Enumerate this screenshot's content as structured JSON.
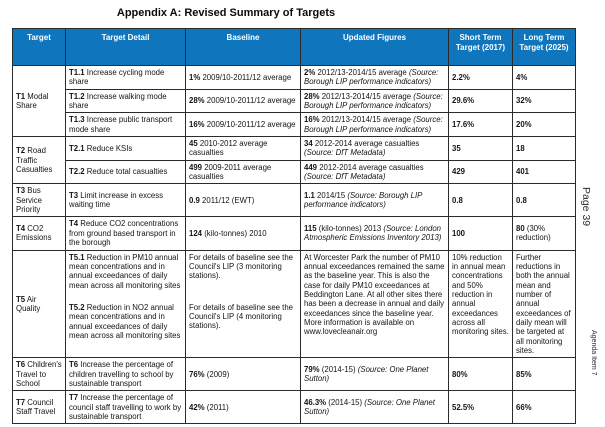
{
  "page": {
    "title": "Appendix A: Revised Summary of Targets",
    "margin": {
      "page_label": "Page 39",
      "agenda_label": "Agenda Item 7"
    }
  },
  "colors": {
    "header_bg": "#0F76BE",
    "header_text": "#FFFFFF",
    "border": "#2B2B2B"
  },
  "table": {
    "headers": [
      "Target",
      "Target Detail",
      "Baseline",
      "Updated Figures",
      "Short Term Target (2017)",
      "Long Term Target (2025)"
    ],
    "groups": [
      {
        "target": [
          {
            "b": "T1"
          },
          {
            "t": "Modal Share"
          }
        ],
        "rows": [
          {
            "detail": [
              {
                "b": "T1.1"
              },
              {
                "t": "Increase cycling mode share"
              }
            ],
            "baseline": [
              {
                "b": "1%"
              },
              {
                "t": "2009/10-2011/12 average"
              }
            ],
            "updated": [
              {
                "b": "2%"
              },
              {
                "t": "2012/13-2014/15 average"
              },
              {
                "i": "(Source: Borough LIP performance indicators)"
              }
            ],
            "short": [
              {
                "b": "2.2%"
              }
            ],
            "long": [
              {
                "b": "4%"
              }
            ]
          },
          {
            "detail": [
              {
                "b": "T1.2"
              },
              {
                "t": "Increase walking mode share"
              }
            ],
            "baseline": [
              {
                "b": "28%"
              },
              {
                "t": "2009/10-2011/12 average"
              }
            ],
            "updated": [
              {
                "b": "28%"
              },
              {
                "t": "2012/13-2014/15 average"
              },
              {
                "i": "(Source: Borough LIP performance indicators)"
              }
            ],
            "short": [
              {
                "b": "29.6%"
              }
            ],
            "long": [
              {
                "b": "32%"
              }
            ]
          },
          {
            "detail": [
              {
                "b": "T1.3"
              },
              {
                "t": "Increase public transport mode share"
              }
            ],
            "baseline": [
              {
                "b": "16%"
              },
              {
                "t": "2009/10-2011/12 average"
              }
            ],
            "updated": [
              {
                "b": "16%"
              },
              {
                "t": "2012/13-2014/15 average"
              },
              {
                "i": "(Source: Borough LIP performance indicators)"
              }
            ],
            "short": [
              {
                "b": "17.6%"
              }
            ],
            "long": [
              {
                "b": "20%"
              }
            ]
          }
        ]
      },
      {
        "target": [
          {
            "b": "T2"
          },
          {
            "t": "Road Traffic Casualties"
          }
        ],
        "rows": [
          {
            "detail": [
              {
                "b": "T2.1"
              },
              {
                "t": "Reduce KSIs"
              }
            ],
            "baseline": [
              {
                "b": "45"
              },
              {
                "t": "2010-2012 average casualties"
              }
            ],
            "updated": [
              {
                "b": "34"
              },
              {
                "t": "2012-2014 average casualties"
              },
              {
                "i": "(Source: DfT Metadata)"
              }
            ],
            "short": [
              {
                "b": "35"
              }
            ],
            "long": [
              {
                "b": "18"
              }
            ]
          },
          {
            "detail": [
              {
                "b": "T2.2"
              },
              {
                "t": "Reduce total casualties"
              }
            ],
            "baseline": [
              {
                "b": "499"
              },
              {
                "t": "2009-2011 average casualties"
              }
            ],
            "updated": [
              {
                "b": "449"
              },
              {
                "t": "2012-2014 average casualties"
              },
              {
                "i": "(Source: DfT Metadata)"
              }
            ],
            "short": [
              {
                "b": "429"
              }
            ],
            "long": [
              {
                "b": "401"
              }
            ]
          }
        ]
      },
      {
        "target": [
          {
            "b": "T3"
          },
          {
            "t": "Bus Service Priority"
          }
        ],
        "rows": [
          {
            "detail": [
              {
                "b": "T3"
              },
              {
                "t": "Limit increase in excess waiting time"
              }
            ],
            "baseline": [
              {
                "b": "0.9"
              },
              {
                "t": "2011/12 (EWT)"
              }
            ],
            "updated": [
              {
                "b": "1.1"
              },
              {
                "t": "2014/15"
              },
              {
                "i": "(Source: Borough LIP performance indicators)"
              }
            ],
            "short": [
              {
                "b": "0.8"
              }
            ],
            "long": [
              {
                "b": "0.8"
              }
            ]
          }
        ]
      },
      {
        "target": [
          {
            "b": "T4"
          },
          {
            "t": "CO2 Emissions"
          }
        ],
        "rows": [
          {
            "detail": [
              {
                "b": "T4"
              },
              {
                "t": "Reduce CO2 concentrations from ground based transport in the borough"
              }
            ],
            "baseline": [
              {
                "b": "124"
              },
              {
                "t": "(kilo-tonnes) 2010"
              }
            ],
            "updated": [
              {
                "b": "115"
              },
              {
                "t": "(kilo-tonnes) 2013"
              },
              {
                "i": "(Source: London Atmospheric Emissions Inventory 2013)"
              }
            ],
            "short": [
              {
                "b": "100"
              }
            ],
            "long": [
              {
                "b": "80"
              },
              {
                "t": "(30% reduction)"
              }
            ]
          }
        ]
      },
      {
        "target": [
          {
            "b": "T5"
          },
          {
            "t": "Air Quality"
          }
        ],
        "tall": true,
        "rows": [
          {
            "detail": {
              "paras": [
                [
                  {
                    "b": "T5.1"
                  },
                  {
                    "t": "Reduction in PM10 annual mean concentrations and in annual exceedances of daily mean across all monitoring sites"
                  }
                ],
                [
                  {
                    "b": "T5.2"
                  },
                  {
                    "t": "Reduction in NO2 annual mean concentrations and in annual exceedances of daily mean across all monitoring sites"
                  }
                ]
              ]
            },
            "baseline": {
              "paras": [
                [
                  {
                    "t": "For details of baseline see the Council's LIP (3 monitoring stations)."
                  }
                ],
                [
                  {
                    "t": "For details of baseline see the Council's LIP (4 monitoring stations)."
                  }
                ]
              ]
            },
            "updated": [
              {
                "t": "At Worcester Park the number of PM10 annual exceedances remained the same as the baseline year. This is also the case for daily PM10 exceedances at Beddington Lane. At all other sites there has been a decrease in annual and daily exceedances since the baseline year. More information is available on www.lovecleanair.org"
              }
            ],
            "short": [
              {
                "t": "10% reduction in annual mean concentrations and 50% reduction in annual exceedances across all monitoring sites."
              }
            ],
            "long": [
              {
                "t": "Further reductions in both the annual mean and number of annual exceedances of daily mean will be targeted at all monitoring sites."
              }
            ]
          }
        ]
      },
      {
        "target": [
          {
            "b": "T6"
          },
          {
            "t": "Children's Travel to School"
          }
        ],
        "rows": [
          {
            "detail": [
              {
                "b": "T6"
              },
              {
                "t": "Increase the percentage of children travelling to school by sustainable transport"
              }
            ],
            "baseline": [
              {
                "b": "76%"
              },
              {
                "t": "(2009)"
              }
            ],
            "updated": [
              {
                "b": "79%"
              },
              {
                "t": "(2014-15)"
              },
              {
                "i": "(Source: One Planet Sutton)"
              }
            ],
            "short": [
              {
                "b": "80%"
              }
            ],
            "long": [
              {
                "b": "85%"
              }
            ]
          }
        ]
      },
      {
        "target": [
          {
            "b": "T7"
          },
          {
            "t": "Council Staff Travel"
          }
        ],
        "rows": [
          {
            "detail": [
              {
                "b": "T7"
              },
              {
                "t": "Increase the percentage of council staff travelling to work by sustainable transport"
              }
            ],
            "baseline": [
              {
                "b": "42%"
              },
              {
                "t": "(2011)"
              }
            ],
            "updated": [
              {
                "b": "46.3%"
              },
              {
                "t": "(2014-15)"
              },
              {
                "i": "(Source: One Planet Sutton)"
              }
            ],
            "short": [
              {
                "b": "52.5%"
              }
            ],
            "long": [
              {
                "b": "66%"
              }
            ]
          }
        ]
      }
    ]
  }
}
